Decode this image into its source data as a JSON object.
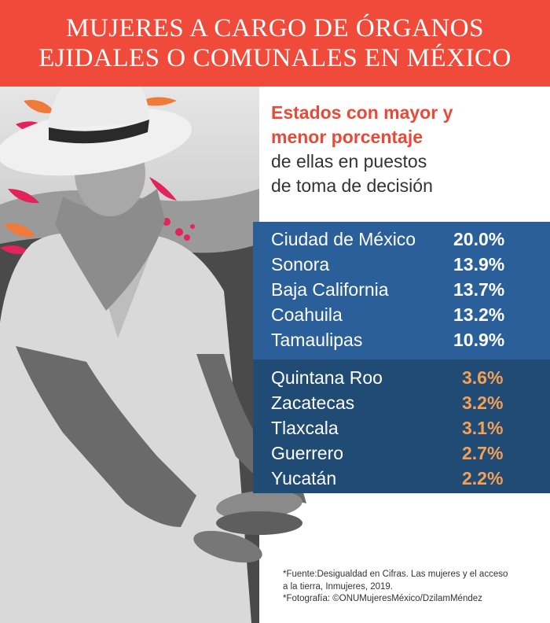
{
  "header": {
    "line1": "MUJERES A CARGO DE ÓRGANOS",
    "line2": "EJIDALES O COMUNALES EN MÉXICO"
  },
  "subtitle": {
    "line1": "Estados con mayor y",
    "line2": "menor porcentaje",
    "line3": "de ellas en puestos",
    "line4": "de toma de decisión"
  },
  "chart_data": {
    "type": "table",
    "categories": [
      "Ciudad de México",
      "Sonora",
      "Baja California",
      "Coahuila",
      "Tamaulipas",
      "Quintana Roo",
      "Zacatecas",
      "Tlaxcala",
      "Guerrero",
      "Yucatán"
    ],
    "values": [
      20.0,
      13.9,
      13.7,
      13.2,
      10.9,
      3.6,
      3.2,
      3.1,
      2.7,
      2.2
    ],
    "groups": {
      "highest": [
        {
          "state": "Ciudad de México",
          "value": "20.0%"
        },
        {
          "state": "Sonora",
          "value": "13.9%"
        },
        {
          "state": "Baja California",
          "value": "13.7%"
        },
        {
          "state": "Coahuila",
          "value": "13.2%"
        },
        {
          "state": "Tamaulipas",
          "value": "10.9%"
        }
      ],
      "lowest": [
        {
          "state": "Quintana Roo",
          "value": "3.6%"
        },
        {
          "state": "Zacatecas",
          "value": "3.2%"
        },
        {
          "state": "Tlaxcala",
          "value": "3.1%"
        },
        {
          "state": "Guerrero",
          "value": "2.7%"
        },
        {
          "state": "Yucatán",
          "value": "2.2%"
        }
      ]
    }
  },
  "footnote": {
    "line1": "*Fuente:Desigualdad en Cifras. Las mujeres y el acceso",
    "line2": "a la tierra, Inmujeres, 2019.",
    "line3": "*Fotografía: ©ONUMujeresMéxico/DzilamMéndez"
  },
  "colors": {
    "header_bg": "#f04a3b",
    "accent_text": "#e84a37",
    "panel_high": "#2b5f99",
    "panel_low": "#1f4b75",
    "low_values": "#f4a055"
  }
}
